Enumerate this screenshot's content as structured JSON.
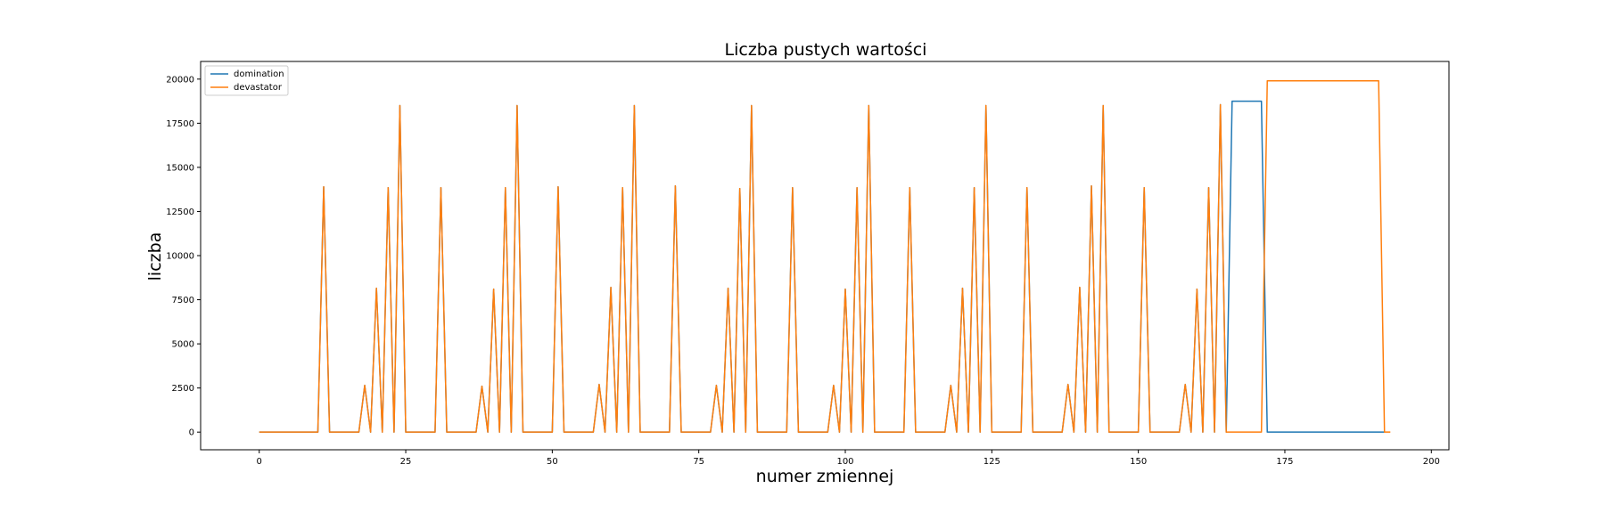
{
  "chart_data": {
    "type": "line",
    "title": "Liczba pustych wartości",
    "xlabel": "numer zmiennej",
    "ylabel": "liczba",
    "xlim": [
      -10,
      203
    ],
    "ylim": [
      -1000,
      21000
    ],
    "xticks": [
      0,
      25,
      50,
      75,
      100,
      125,
      150,
      175,
      200
    ],
    "yticks": [
      0,
      2500,
      5000,
      7500,
      10000,
      12500,
      15000,
      17500,
      20000
    ],
    "grid": false,
    "legend_position": "top-left",
    "series": [
      {
        "name": "domination",
        "color": "#1f77b4",
        "x": [
          0,
          1,
          2,
          3,
          4,
          5,
          6,
          7,
          8,
          9,
          10,
          11,
          12,
          13,
          14,
          15,
          16,
          17,
          18,
          19,
          20,
          21,
          22,
          23,
          24,
          25,
          26,
          27,
          28,
          29,
          30,
          31,
          32,
          33,
          34,
          35,
          36,
          37,
          38,
          39,
          40,
          41,
          42,
          43,
          44,
          45,
          46,
          47,
          48,
          49,
          50,
          51,
          52,
          53,
          54,
          55,
          56,
          57,
          58,
          59,
          60,
          61,
          62,
          63,
          64,
          65,
          66,
          67,
          68,
          69,
          70,
          71,
          72,
          73,
          74,
          75,
          76,
          77,
          78,
          79,
          80,
          81,
          82,
          83,
          84,
          85,
          86,
          87,
          88,
          89,
          90,
          91,
          92,
          93,
          94,
          95,
          96,
          97,
          98,
          99,
          100,
          101,
          102,
          103,
          104,
          105,
          106,
          107,
          108,
          109,
          110,
          111,
          112,
          113,
          114,
          115,
          116,
          117,
          118,
          119,
          120,
          121,
          122,
          123,
          124,
          125,
          126,
          127,
          128,
          129,
          130,
          131,
          132,
          133,
          134,
          135,
          136,
          137,
          138,
          139,
          140,
          141,
          142,
          143,
          144,
          145,
          146,
          147,
          148,
          149,
          150,
          151,
          152,
          153,
          154,
          155,
          156,
          157,
          158,
          159,
          160,
          161,
          162,
          163,
          164,
          165,
          166,
          167,
          168,
          169,
          170,
          171,
          172,
          173,
          174,
          175,
          176,
          177,
          178,
          179,
          180,
          181,
          182,
          183,
          184,
          185,
          186,
          187,
          188,
          189,
          190,
          191,
          192
        ],
        "y": [
          0,
          0,
          0,
          0,
          0,
          0,
          0,
          0,
          0,
          0,
          0,
          13900,
          0,
          0,
          0,
          0,
          0,
          0,
          2650,
          0,
          8150,
          0,
          13850,
          0,
          18500,
          0,
          0,
          0,
          0,
          0,
          0,
          13850,
          0,
          0,
          0,
          0,
          0,
          0,
          2600,
          0,
          8100,
          0,
          13850,
          0,
          18500,
          0,
          0,
          0,
          0,
          0,
          0,
          13900,
          0,
          0,
          0,
          0,
          0,
          0,
          2700,
          0,
          8200,
          0,
          13850,
          0,
          18500,
          0,
          0,
          0,
          0,
          0,
          0,
          13950,
          0,
          0,
          0,
          0,
          0,
          0,
          2650,
          0,
          8150,
          0,
          13800,
          0,
          18500,
          0,
          0,
          0,
          0,
          0,
          0,
          13850,
          0,
          0,
          0,
          0,
          0,
          0,
          2650,
          0,
          8100,
          0,
          13850,
          0,
          18500,
          0,
          0,
          0,
          0,
          0,
          0,
          13850,
          0,
          0,
          0,
          0,
          0,
          0,
          2650,
          0,
          8150,
          0,
          13850,
          0,
          18500,
          0,
          0,
          0,
          0,
          0,
          0,
          13850,
          0,
          0,
          0,
          0,
          0,
          0,
          2700,
          0,
          8200,
          0,
          13950,
          0,
          18500,
          0,
          0,
          0,
          0,
          0,
          0,
          13850,
          0,
          0,
          0,
          0,
          0,
          0,
          2700,
          0,
          8100,
          0,
          13850,
          0,
          18550,
          0,
          18750,
          18750,
          18750,
          18750,
          18750,
          18750,
          0,
          0,
          0,
          0,
          0,
          0,
          0,
          0,
          0,
          0,
          0,
          0,
          0,
          0,
          0,
          0,
          0,
          0,
          0,
          0,
          0
        ]
      },
      {
        "name": "devastator",
        "color": "#ff7f0e",
        "x": [
          0,
          1,
          2,
          3,
          4,
          5,
          6,
          7,
          8,
          9,
          10,
          11,
          12,
          13,
          14,
          15,
          16,
          17,
          18,
          19,
          20,
          21,
          22,
          23,
          24,
          25,
          26,
          27,
          28,
          29,
          30,
          31,
          32,
          33,
          34,
          35,
          36,
          37,
          38,
          39,
          40,
          41,
          42,
          43,
          44,
          45,
          46,
          47,
          48,
          49,
          50,
          51,
          52,
          53,
          54,
          55,
          56,
          57,
          58,
          59,
          60,
          61,
          62,
          63,
          64,
          65,
          66,
          67,
          68,
          69,
          70,
          71,
          72,
          73,
          74,
          75,
          76,
          77,
          78,
          79,
          80,
          81,
          82,
          83,
          84,
          85,
          86,
          87,
          88,
          89,
          90,
          91,
          92,
          93,
          94,
          95,
          96,
          97,
          98,
          99,
          100,
          101,
          102,
          103,
          104,
          105,
          106,
          107,
          108,
          109,
          110,
          111,
          112,
          113,
          114,
          115,
          116,
          117,
          118,
          119,
          120,
          121,
          122,
          123,
          124,
          125,
          126,
          127,
          128,
          129,
          130,
          131,
          132,
          133,
          134,
          135,
          136,
          137,
          138,
          139,
          140,
          141,
          142,
          143,
          144,
          145,
          146,
          147,
          148,
          149,
          150,
          151,
          152,
          153,
          154,
          155,
          156,
          157,
          158,
          159,
          160,
          161,
          162,
          163,
          164,
          165,
          166,
          167,
          168,
          169,
          170,
          171,
          172,
          173,
          174,
          175,
          176,
          177,
          178,
          179,
          180,
          181,
          182,
          183,
          184,
          185,
          186,
          187,
          188,
          189,
          190,
          191,
          192,
          193
        ],
        "y": [
          0,
          0,
          0,
          0,
          0,
          0,
          0,
          0,
          0,
          0,
          0,
          13900,
          0,
          0,
          0,
          0,
          0,
          0,
          2650,
          0,
          8150,
          0,
          13850,
          0,
          18500,
          0,
          0,
          0,
          0,
          0,
          0,
          13850,
          0,
          0,
          0,
          0,
          0,
          0,
          2600,
          0,
          8100,
          0,
          13850,
          0,
          18500,
          0,
          0,
          0,
          0,
          0,
          0,
          13900,
          0,
          0,
          0,
          0,
          0,
          0,
          2700,
          0,
          8200,
          0,
          13850,
          0,
          18500,
          0,
          0,
          0,
          0,
          0,
          0,
          13950,
          0,
          0,
          0,
          0,
          0,
          0,
          2650,
          0,
          8150,
          0,
          13800,
          0,
          18500,
          0,
          0,
          0,
          0,
          0,
          0,
          13850,
          0,
          0,
          0,
          0,
          0,
          0,
          2650,
          0,
          8100,
          0,
          13850,
          0,
          18500,
          0,
          0,
          0,
          0,
          0,
          0,
          13850,
          0,
          0,
          0,
          0,
          0,
          0,
          2650,
          0,
          8150,
          0,
          13850,
          0,
          18500,
          0,
          0,
          0,
          0,
          0,
          0,
          13850,
          0,
          0,
          0,
          0,
          0,
          0,
          2700,
          0,
          8200,
          0,
          13950,
          0,
          18500,
          0,
          0,
          0,
          0,
          0,
          0,
          13850,
          0,
          0,
          0,
          0,
          0,
          0,
          2700,
          0,
          8100,
          0,
          13850,
          0,
          18550,
          0,
          0,
          0,
          0,
          0,
          0,
          0,
          19900,
          19900,
          19900,
          19900,
          19900,
          19900,
          19900,
          19900,
          19900,
          19900,
          19900,
          19900,
          19900,
          19900,
          19900,
          19900,
          19900,
          19900,
          19900,
          19900,
          0,
          0
        ]
      }
    ]
  }
}
